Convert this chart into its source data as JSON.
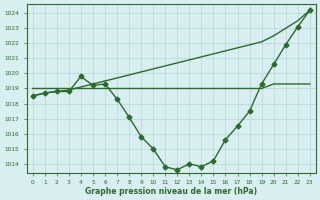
{
  "x": [
    0,
    1,
    2,
    3,
    4,
    5,
    6,
    7,
    8,
    9,
    10,
    11,
    12,
    13,
    14,
    15,
    16,
    17,
    18,
    19,
    20,
    21,
    22,
    23
  ],
  "line_curve": [
    1018.5,
    1018.7,
    1018.8,
    1018.8,
    1019.8,
    1019.2,
    1019.3,
    1018.3,
    1017.1,
    1015.8,
    1015.0,
    1013.8,
    1013.6,
    1014.0,
    1013.8,
    1014.2,
    1015.6,
    1016.5,
    1017.5,
    1019.3,
    1020.6,
    1021.9,
    1023.1,
    1024.2
  ],
  "line_flat": [
    1019.0,
    1019.0,
    1019.0,
    1019.0,
    1019.0,
    1019.0,
    1019.0,
    1019.0,
    1019.0,
    1019.0,
    1019.0,
    1019.0,
    1019.0,
    1019.0,
    1019.0,
    1019.0,
    1019.0,
    1019.0,
    1019.0,
    1019.0,
    1019.3,
    1019.3,
    1019.3,
    1019.3
  ],
  "line_diag": [
    1018.5,
    1018.7,
    1018.8,
    1018.9,
    1019.1,
    1019.3,
    1019.5,
    1019.7,
    1019.9,
    1020.1,
    1020.3,
    1020.5,
    1020.7,
    1020.9,
    1021.1,
    1021.3,
    1021.5,
    1021.7,
    1021.9,
    1022.1,
    1022.5,
    1023.0,
    1023.5,
    1024.2
  ],
  "line_color": "#2d6a2d",
  "bg_color": "#d8eef0",
  "grid_color": "#b5d5d8",
  "ylabel_ticks": [
    1014,
    1015,
    1016,
    1017,
    1018,
    1019,
    1020,
    1021,
    1022,
    1023,
    1024
  ],
  "xlabel": "Graphe pression niveau de la mer (hPa)",
  "ylim": [
    1013.4,
    1024.6
  ],
  "xlim": [
    -0.5,
    23.5
  ],
  "marker": "D",
  "markersize": 2.5,
  "linewidth": 1.0
}
